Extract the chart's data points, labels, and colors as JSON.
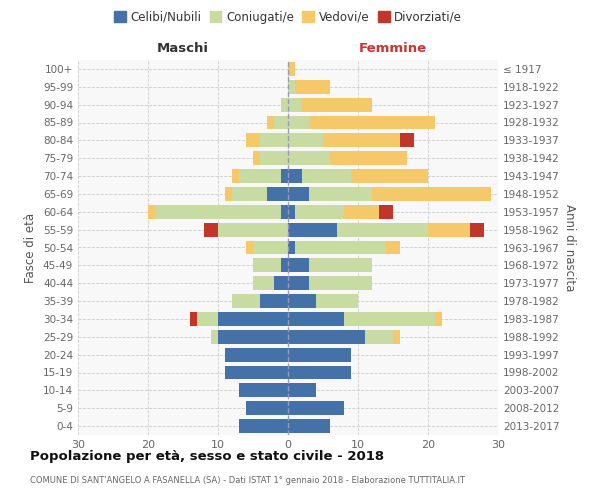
{
  "age_groups": [
    "100+",
    "95-99",
    "90-94",
    "85-89",
    "80-84",
    "75-79",
    "70-74",
    "65-69",
    "60-64",
    "55-59",
    "50-54",
    "45-49",
    "40-44",
    "35-39",
    "30-34",
    "25-29",
    "20-24",
    "15-19",
    "10-14",
    "5-9",
    "0-4"
  ],
  "birth_years": [
    "≤ 1917",
    "1918-1922",
    "1923-1927",
    "1928-1932",
    "1933-1937",
    "1938-1942",
    "1943-1947",
    "1948-1952",
    "1953-1957",
    "1958-1962",
    "1963-1967",
    "1968-1972",
    "1973-1977",
    "1978-1982",
    "1983-1987",
    "1988-1992",
    "1993-1997",
    "1998-2002",
    "2003-2007",
    "2008-2012",
    "2013-2017"
  ],
  "male": {
    "celibi": [
      0,
      0,
      0,
      0,
      0,
      0,
      1,
      3,
      1,
      0,
      0,
      1,
      2,
      4,
      10,
      10,
      9,
      9,
      7,
      6,
      7
    ],
    "coniugati": [
      0,
      0,
      1,
      2,
      4,
      4,
      6,
      5,
      18,
      10,
      5,
      4,
      3,
      4,
      3,
      1,
      0,
      0,
      0,
      0,
      0
    ],
    "vedovi": [
      0,
      0,
      0,
      1,
      2,
      1,
      1,
      1,
      1,
      0,
      1,
      0,
      0,
      0,
      0,
      0,
      0,
      0,
      0,
      0,
      0
    ],
    "divorziati": [
      0,
      0,
      0,
      0,
      0,
      0,
      0,
      0,
      0,
      2,
      0,
      0,
      0,
      0,
      1,
      0,
      0,
      0,
      0,
      0,
      0
    ]
  },
  "female": {
    "nubili": [
      0,
      0,
      0,
      0,
      0,
      0,
      2,
      3,
      1,
      7,
      1,
      3,
      3,
      4,
      8,
      11,
      9,
      9,
      4,
      8,
      6
    ],
    "coniugate": [
      0,
      1,
      2,
      3,
      5,
      6,
      7,
      9,
      7,
      13,
      13,
      9,
      9,
      6,
      13,
      4,
      0,
      0,
      0,
      0,
      0
    ],
    "vedove": [
      1,
      5,
      10,
      18,
      11,
      11,
      11,
      17,
      5,
      6,
      2,
      0,
      0,
      0,
      1,
      1,
      0,
      0,
      0,
      0,
      0
    ],
    "divorziate": [
      0,
      0,
      0,
      0,
      2,
      0,
      0,
      0,
      2,
      2,
      0,
      0,
      0,
      0,
      0,
      0,
      0,
      0,
      0,
      0,
      0
    ]
  },
  "colors": {
    "celibi_nubili": "#4472a8",
    "coniugati": "#c8dba2",
    "vedovi": "#f5c96a",
    "divorziati": "#c0362b"
  },
  "title": "Popolazione per età, sesso e stato civile - 2018",
  "subtitle": "COMUNE DI SANT'ANGELO A FASANELLA (SA) - Dati ISTAT 1° gennaio 2018 - Elaborazione TUTTITALIA.IT",
  "xlabel_left": "Maschi",
  "xlabel_right": "Femmine",
  "ylabel_left": "Fasce di età",
  "ylabel_right": "Anni di nascita",
  "xlim": 30,
  "legend_labels": [
    "Celibi/Nubili",
    "Coniugati/e",
    "Vedovi/e",
    "Divorziati/e"
  ],
  "bg_color": "#f8f8f8",
  "grid_color": "#cccccc"
}
